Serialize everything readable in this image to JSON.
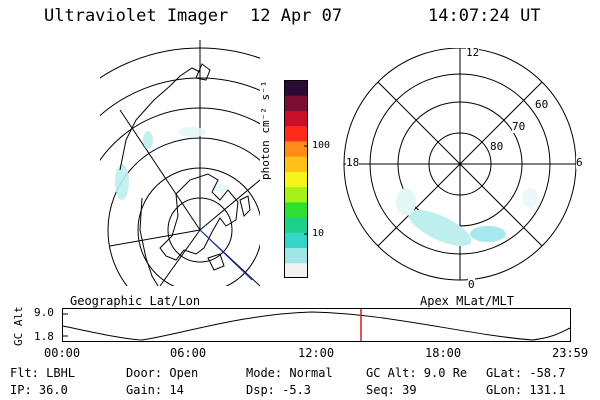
{
  "header": {
    "instrument": "Ultraviolet Imager",
    "date": "12 Apr 07",
    "time": "14:07:24 UT"
  },
  "colorbar": {
    "unit_label": "photon cm⁻² s⁻¹",
    "ticks": [
      "100",
      "10"
    ],
    "scale": "log",
    "colors": [
      "#f2f2f2",
      "#9fe6e6",
      "#33d6c8",
      "#1fd08a",
      "#2ee02e",
      "#a6f01a",
      "#f5f51a",
      "#ffc01a",
      "#ff8c1a",
      "#ff2a1a",
      "#c8102a",
      "#7a0f33",
      "#2b0a36"
    ]
  },
  "left_panel": {
    "caption": "Geographic Lat/Lon",
    "projection": "geographic"
  },
  "right_panel": {
    "caption": "Apex MLat/MLT",
    "mlt_labels": {
      "top": "12",
      "left": "18",
      "right": "6",
      "bottom": "0"
    },
    "lat_labels": [
      "60",
      "70",
      "80"
    ]
  },
  "altitude_plot": {
    "axis_title": "GC Alt",
    "y_ticks": [
      "9.0",
      "1.8"
    ],
    "x_ticks": [
      "00:00",
      "06:00",
      "12:00",
      "18:00",
      "23:59"
    ],
    "current_time_marker": "14:07",
    "marker_color": "#d0201a"
  },
  "info": {
    "filter": "Flt: LBHL",
    "ip": "IP: 36.0",
    "door": "Door: Open",
    "gain": "Gain: 14",
    "mode": "Mode: Normal",
    "dsp": "Dsp:   -5.3",
    "gc_alt": "GC Alt: 9.0 Re",
    "seq": "Seq: 39",
    "glat": "GLat: -58.7",
    "glon": "GLon: 131.1"
  }
}
